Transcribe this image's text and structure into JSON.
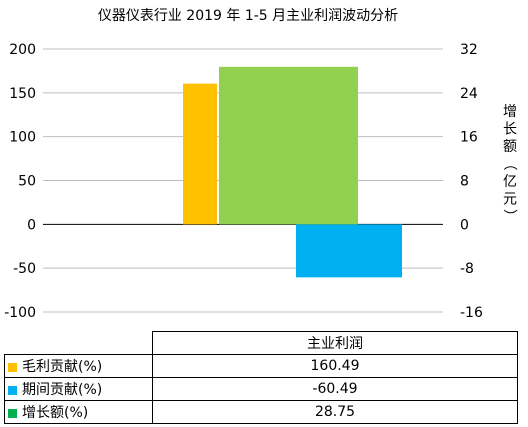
{
  "chart_data": {
    "type": "bar",
    "title": "仪器仪表行业 2019 年 1-5 月主业利润波动分析",
    "category": "主业利润",
    "y_left": {
      "ticks": [
        "200",
        "150",
        "100",
        "50",
        "0",
        "-50",
        "-100"
      ],
      "range": [
        -100,
        200
      ]
    },
    "y_right": {
      "ticks": [
        "32",
        "24",
        "16",
        "8",
        "0",
        "-8",
        "-16"
      ],
      "range": [
        -16,
        32
      ],
      "label": "增长额（亿元）"
    },
    "series": [
      {
        "name": "毛利贡献(%)",
        "value": 160.49,
        "value_text": "160.49",
        "axis": "left",
        "color": "#FFC000"
      },
      {
        "name": "期间贡献(%)",
        "value": -60.49,
        "value_text": "-60.49",
        "axis": "left",
        "color": "#00B0F0"
      },
      {
        "name": "增长额(%)",
        "value": 28.75,
        "value_text": "28.75",
        "axis": "right",
        "color": "#92D050"
      }
    ],
    "grid": true,
    "legend": "data-table-below"
  }
}
